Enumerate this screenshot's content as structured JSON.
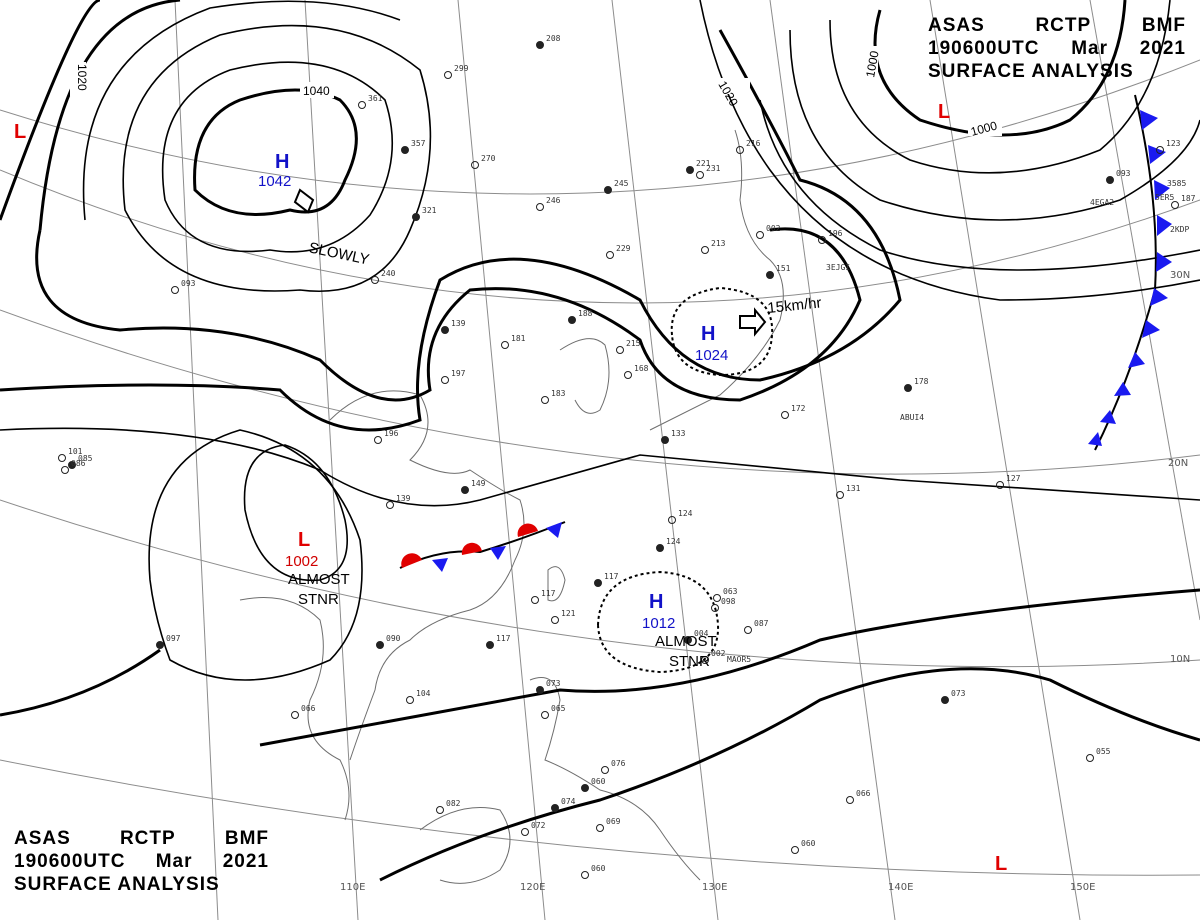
{
  "header": {
    "agency": "ASAS",
    "station": "RCTP",
    "office": "BMF",
    "datetime": "190600UTC",
    "month": "Mar",
    "year": "2021",
    "product": "SURFACE ANALYSIS"
  },
  "pressure_systems": [
    {
      "type": "H",
      "pressure": "1042"
    },
    {
      "type": "H",
      "pressure": "1024"
    },
    {
      "type": "H",
      "pressure": "1012"
    },
    {
      "type": "L",
      "pressure": "1002"
    },
    {
      "type": "L",
      "pressure": ""
    },
    {
      "type": "L",
      "pressure": ""
    },
    {
      "type": "L",
      "pressure": ""
    }
  ],
  "motion_notes": {
    "slowly": "SLOWLY",
    "speed": "15km/hr",
    "almost_stnr_line1": "ALMOST",
    "almost_stnr_line2": "STNR"
  },
  "isobar_labels": [
    "1040",
    "1020",
    "1020",
    "1000",
    "1000"
  ],
  "longitude_labels": [
    "110E",
    "120E",
    "130E",
    "140E",
    "150E"
  ],
  "latitude_labels": [
    "30N",
    "20N",
    "10N"
  ],
  "station_codes": [
    "3EJGI",
    "ABUI4",
    "MAOR5",
    "4EGA2",
    "5ER5",
    "3585",
    "2KDP"
  ],
  "station_obs": [
    "208",
    "299",
    "361",
    "357",
    "270",
    "246",
    "245",
    "229",
    "213",
    "221",
    "216",
    "196",
    "321",
    "240",
    "181",
    "139",
    "197",
    "183",
    "188",
    "215",
    "168",
    "178",
    "172",
    "196",
    "149",
    "139",
    "124",
    "124",
    "131",
    "127",
    "117",
    "121",
    "117",
    "117",
    "087",
    "063",
    "085",
    "101",
    "069",
    "090",
    "104",
    "066",
    "073",
    "065",
    "076",
    "060",
    "082",
    "072",
    "074",
    "060",
    "066",
    "073",
    "055",
    "060",
    "093",
    "123",
    "187",
    "151",
    "002",
    "098",
    "097",
    "086",
    "093",
    "004",
    "002",
    "231",
    "133"
  ],
  "colors": {
    "high": "#1212c8",
    "low": "#e00000",
    "isobar": "#000000",
    "coast": "#6e6e6e",
    "grid": "#8c8c8c"
  }
}
